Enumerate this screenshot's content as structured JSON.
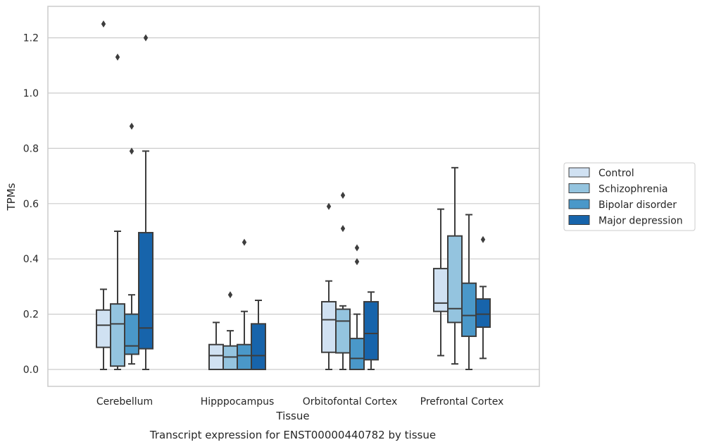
{
  "chart_data": {
    "type": "box",
    "xlabel": "Tissue",
    "ylabel": "TPMs",
    "caption": "Transcript expression for ENST00000440782 by tissue",
    "ylim": [
      -0.06,
      1.32
    ],
    "yticks": [
      "0.0",
      "0.2",
      "0.4",
      "0.6",
      "0.8",
      "1.0",
      "1.2"
    ],
    "grid": "horizontal",
    "legend_position": "right",
    "categories": [
      "Cerebellum",
      "Hipppocampus",
      "Orbitofontal Cortex",
      "Prefrontal Cortex"
    ],
    "series": [
      {
        "name": "Control",
        "color": "#d0e1f2",
        "boxes": [
          {
            "whislo": 0.0,
            "q1": 0.08,
            "med": 0.16,
            "q3": 0.215,
            "whishi": 0.29,
            "fliers": []
          },
          {
            "whislo": 0.0,
            "q1": 0.0,
            "med": 0.05,
            "q3": 0.09,
            "whishi": 0.17,
            "fliers": []
          },
          {
            "whislo": 0.0,
            "q1": 0.062,
            "med": 0.18,
            "q3": 0.245,
            "whishi": 0.32,
            "fliers": [
              0.59
            ]
          },
          {
            "whislo": 0.05,
            "q1": 0.21,
            "med": 0.24,
            "q3": 0.365,
            "whishi": 0.58,
            "fliers": []
          }
        ]
      },
      {
        "name": "Schizophrenia",
        "color": "#94c4df",
        "boxes": [
          {
            "whislo": 0.0,
            "q1": 0.012,
            "med": 0.165,
            "q3": 0.237,
            "whishi": 0.5,
            "fliers": [
              1.13
            ]
          },
          {
            "whislo": 0.0,
            "q1": 0.0,
            "med": 0.045,
            "q3": 0.085,
            "whishi": 0.14,
            "fliers": [
              0.27
            ]
          },
          {
            "whislo": 0.0,
            "q1": 0.06,
            "med": 0.175,
            "q3": 0.218,
            "whishi": 0.23,
            "fliers": [
              0.51,
              0.63
            ]
          },
          {
            "whislo": 0.02,
            "q1": 0.17,
            "med": 0.22,
            "q3": 0.483,
            "whishi": 0.73,
            "fliers": []
          }
        ]
      },
      {
        "name": "Bipolar disorder",
        "color": "#4a98c9",
        "boxes": [
          {
            "whislo": 0.02,
            "q1": 0.055,
            "med": 0.085,
            "q3": 0.2,
            "whishi": 0.27,
            "fliers": [
              0.79,
              0.88
            ]
          },
          {
            "whislo": 0.0,
            "q1": 0.0,
            "med": 0.05,
            "q3": 0.09,
            "whishi": 0.21,
            "fliers": [
              0.46
            ]
          },
          {
            "whislo": 0.0,
            "q1": 0.0,
            "med": 0.04,
            "q3": 0.112,
            "whishi": 0.2,
            "fliers": [
              0.39,
              0.44
            ]
          },
          {
            "whislo": 0.0,
            "q1": 0.12,
            "med": 0.195,
            "q3": 0.312,
            "whishi": 0.56,
            "fliers": []
          }
        ]
      },
      {
        "name": "Major depression",
        "color": "#1764ab",
        "boxes": [
          {
            "whislo": 0.0,
            "q1": 0.075,
            "med": 0.15,
            "q3": 0.495,
            "whishi": 0.79,
            "fliers": [
              1.2
            ]
          },
          {
            "whislo": 0.0,
            "q1": 0.0,
            "med": 0.05,
            "q3": 0.165,
            "whishi": 0.25,
            "fliers": []
          },
          {
            "whislo": 0.0,
            "q1": 0.035,
            "med": 0.13,
            "q3": 0.245,
            "whishi": 0.28,
            "fliers": []
          },
          {
            "whislo": 0.04,
            "q1": 0.153,
            "med": 0.2,
            "q3": 0.255,
            "whishi": 0.3,
            "fliers": [
              0.47
            ]
          }
        ]
      }
    ],
    "extra_fliers": [
      {
        "category": "Cerebellum",
        "series": "Control",
        "values": [
          1.25
        ]
      }
    ]
  }
}
